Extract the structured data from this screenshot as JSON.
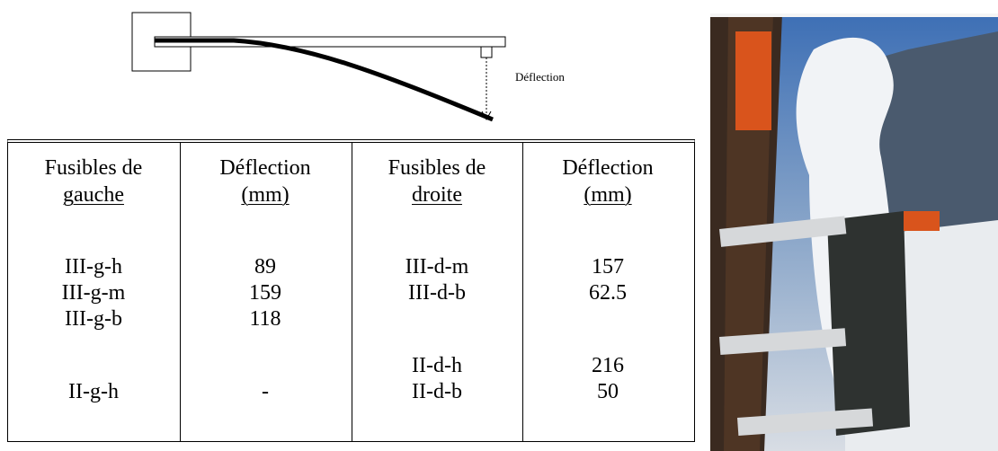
{
  "diagram": {
    "label": "Déflection"
  },
  "table": {
    "header": [
      [
        "Fusibles de",
        "gauche"
      ],
      [
        "Déflection",
        "(mm)"
      ],
      [
        "Fusibles de",
        "droite"
      ],
      [
        "Déflection",
        "(mm)"
      ]
    ],
    "rows": [
      [
        "III-g-h",
        "89",
        "III-d-m",
        "157"
      ],
      [
        "III-g-m",
        "159",
        "III-d-b",
        "62.5"
      ],
      [
        "III-g-b",
        "118",
        null,
        null
      ],
      [
        null,
        null,
        "II-d-h",
        "216"
      ],
      [
        "II-g-h",
        "-",
        "II-d-b",
        "50"
      ]
    ]
  }
}
